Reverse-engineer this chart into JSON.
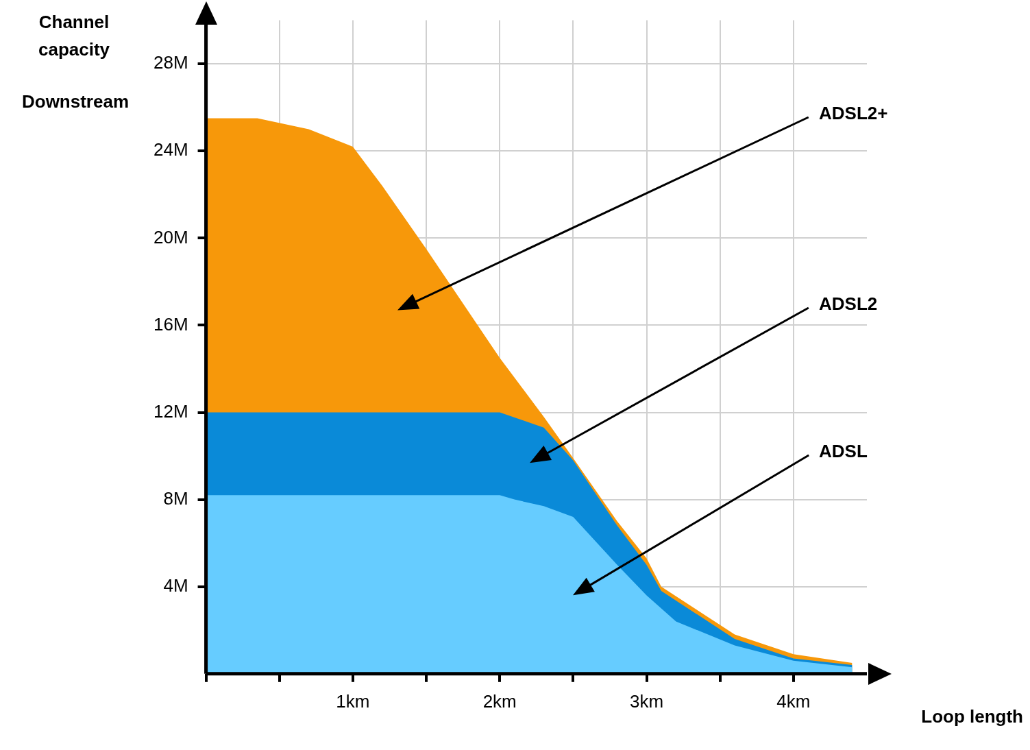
{
  "chart_data": {
    "type": "area",
    "subtitle": "Downstream",
    "xlabel": "Loop length",
    "ylabel": "Channel capacity",
    "xlim": [
      0,
      4.5
    ],
    "ylim": [
      0,
      30
    ],
    "xticks": [
      {
        "value": 0,
        "label": null
      },
      {
        "value": 0.5,
        "label": null
      },
      {
        "value": 1,
        "label": "1km"
      },
      {
        "value": 1.5,
        "label": null
      },
      {
        "value": 2,
        "label": "2km"
      },
      {
        "value": 2.5,
        "label": null
      },
      {
        "value": 3,
        "label": "3km"
      },
      {
        "value": 3.5,
        "label": null
      },
      {
        "value": 4,
        "label": "4km"
      }
    ],
    "yticks": [
      {
        "value": 4,
        "label": "4M"
      },
      {
        "value": 8,
        "label": "8M"
      },
      {
        "value": 12,
        "label": "12M"
      },
      {
        "value": 16,
        "label": "16M"
      },
      {
        "value": 20,
        "label": "20M"
      },
      {
        "value": 24,
        "label": "24M"
      },
      {
        "value": 28,
        "label": "28M"
      }
    ],
    "grid": true,
    "legend": false,
    "series": [
      {
        "name": "ADSL2+",
        "color": "#f7980a",
        "x": [
          0,
          0.35,
          0.7,
          1.0,
          1.2,
          1.5,
          2.0,
          2.3,
          2.5,
          2.8,
          3.0,
          3.1,
          3.6,
          4.0,
          4.4
        ],
        "values": [
          25.5,
          25.5,
          25.0,
          24.2,
          22.4,
          19.5,
          14.5,
          11.8,
          9.9,
          7.0,
          5.3,
          4.0,
          1.8,
          0.9,
          0.5
        ]
      },
      {
        "name": "ADSL2",
        "color": "#0a8ad8",
        "x": [
          0,
          2.0,
          2.3,
          2.5,
          2.8,
          3.0,
          3.1,
          3.6,
          4.0,
          4.4
        ],
        "values": [
          12,
          12,
          11.3,
          9.8,
          6.8,
          5.0,
          3.8,
          1.6,
          0.7,
          0.4
        ]
      },
      {
        "name": "ADSL",
        "color": "#66ccff",
        "x": [
          0,
          2.0,
          2.1,
          2.3,
          2.5,
          2.8,
          3.0,
          3.2,
          3.6,
          4.0,
          4.4
        ],
        "values": [
          8.2,
          8.2,
          8.0,
          7.7,
          7.2,
          5.0,
          3.6,
          2.4,
          1.3,
          0.6,
          0.3
        ]
      }
    ]
  }
}
